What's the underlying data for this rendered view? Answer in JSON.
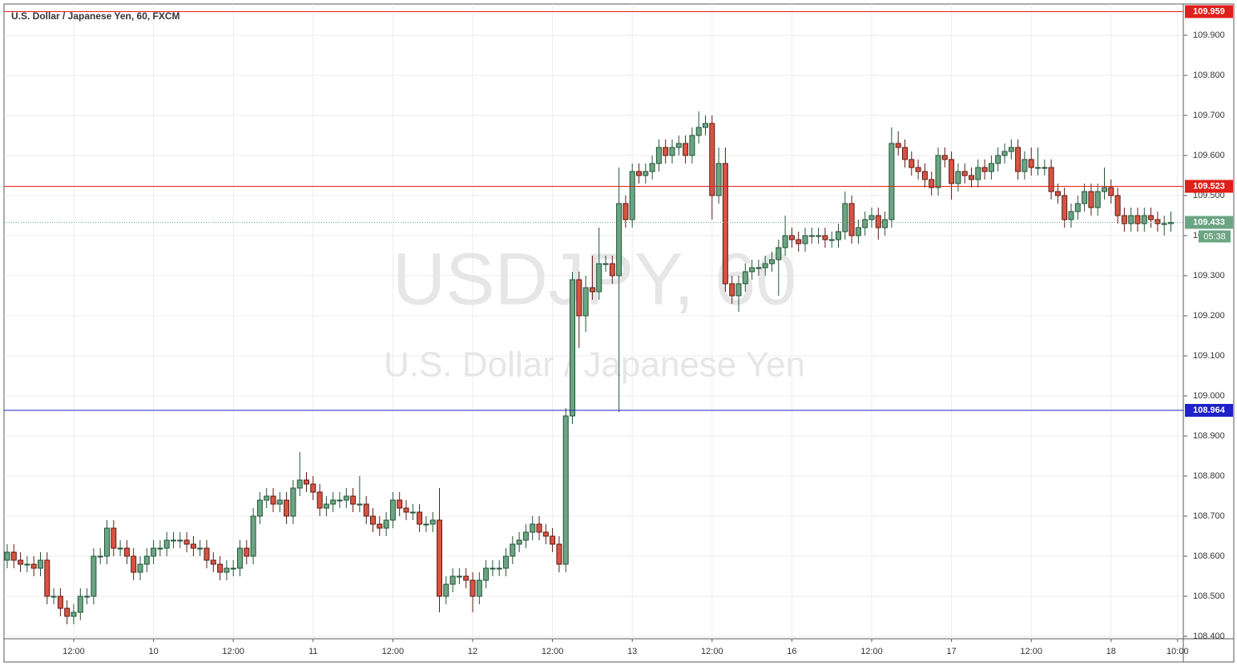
{
  "chart_data": {
    "type": "candlestick",
    "title": "U.S. Dollar / Japanese Yen, 60, FXCM",
    "watermark": "USDJPY, 60",
    "watermark_subtitle": "U.S. Dollar / Japanese Yen",
    "categories": [
      null,
      null,
      null,
      null,
      null,
      null,
      null,
      null,
      null,
      null,
      "12:00",
      null,
      null,
      null,
      null,
      null,
      null,
      null,
      null,
      null,
      null,
      null,
      "10",
      null,
      null,
      null,
      null,
      null,
      null,
      null,
      null,
      null,
      null,
      null,
      "12:00",
      null,
      null,
      null,
      null,
      null,
      null,
      null,
      null,
      null,
      null,
      null,
      "11",
      null,
      null,
      null,
      null,
      null,
      null,
      null,
      null,
      null,
      null,
      null,
      "12:00",
      null,
      null,
      null,
      null,
      null,
      null,
      null,
      null,
      null,
      null,
      null,
      "12",
      null,
      null,
      null,
      null,
      null,
      null,
      null,
      null,
      null,
      null,
      null,
      "12:00",
      null,
      null,
      null,
      null,
      null,
      null,
      null,
      null,
      null,
      null,
      null,
      "13",
      null,
      null,
      null,
      null,
      null,
      null,
      null,
      null,
      null,
      null,
      null,
      "12:00",
      null,
      null,
      null,
      null,
      null,
      null,
      null,
      null,
      null,
      null,
      null,
      "16",
      null,
      null,
      null,
      null,
      null,
      null,
      null,
      null,
      null,
      null,
      null,
      "12:00",
      null,
      null,
      null,
      null,
      null,
      null,
      null,
      null,
      null,
      null,
      null,
      "17",
      null,
      null,
      null,
      null,
      null,
      null,
      null,
      null,
      null,
      null,
      null,
      "12:00",
      null,
      null,
      null,
      null,
      null,
      null,
      null,
      null,
      null,
      null,
      null,
      "18",
      null,
      null,
      null,
      null,
      null,
      null,
      null,
      null,
      null,
      "10:00"
    ],
    "open": [
      108.59,
      108.61,
      108.59,
      108.58,
      108.58,
      108.57,
      108.59,
      108.5,
      108.5,
      108.47,
      108.45,
      108.46,
      108.5,
      108.5,
      108.6,
      108.6,
      108.67,
      108.62,
      108.62,
      108.6,
      108.56,
      108.58,
      108.6,
      108.62,
      108.62,
      108.64,
      108.64,
      108.64,
      108.63,
      108.62,
      108.62,
      108.59,
      108.58,
      108.56,
      108.57,
      108.57,
      108.62,
      108.6,
      108.7,
      108.74,
      108.75,
      108.73,
      108.74,
      108.7,
      108.77,
      108.79,
      108.78,
      108.76,
      108.72,
      108.73,
      108.74,
      108.74,
      108.75,
      108.73,
      108.73,
      108.7,
      108.68,
      108.67,
      108.69,
      108.74,
      108.72,
      108.71,
      108.71,
      108.68,
      108.68,
      108.69,
      108.5,
      108.53,
      108.55,
      108.55,
      108.54,
      108.5,
      108.54,
      108.57,
      108.57,
      108.57,
      108.6,
      108.63,
      108.64,
      108.66,
      108.68,
      108.66,
      108.65,
      108.63,
      108.58,
      108.95,
      109.29,
      109.2,
      109.27,
      109.26,
      109.33,
      109.33,
      109.3,
      109.48,
      109.44,
      109.56,
      109.55,
      109.56,
      109.58,
      109.62,
      109.6,
      109.62,
      109.63,
      109.6,
      109.65,
      109.67,
      109.68,
      109.5,
      109.58,
      109.28,
      109.25,
      109.28,
      109.31,
      109.32,
      109.32,
      109.33,
      109.34,
      109.37,
      109.4,
      109.39,
      109.38,
      109.4,
      109.4,
      109.4,
      109.39,
      109.39,
      109.41,
      109.48,
      109.4,
      109.42,
      109.44,
      109.45,
      109.42,
      109.44,
      109.63,
      109.62,
      109.59,
      109.57,
      109.56,
      109.54,
      109.52,
      109.6,
      109.59,
      109.53,
      109.56,
      109.55,
      109.54,
      109.57,
      109.56,
      109.58,
      109.6,
      109.61,
      109.62,
      109.56,
      109.59,
      109.57,
      109.57,
      109.57,
      109.51,
      109.5,
      109.44,
      109.46,
      109.48,
      109.51,
      109.47,
      109.51,
      109.52,
      109.5,
      109.45,
      109.43,
      109.45,
      109.43,
      109.45,
      109.44,
      109.43,
      109.43,
      null
    ],
    "high": [
      108.63,
      108.63,
      108.61,
      108.6,
      108.6,
      108.61,
      108.61,
      108.52,
      108.52,
      108.49,
      108.48,
      108.52,
      108.52,
      108.62,
      108.62,
      108.69,
      108.69,
      108.64,
      108.64,
      108.62,
      108.6,
      108.62,
      108.64,
      108.64,
      108.66,
      108.66,
      108.66,
      108.66,
      108.65,
      108.64,
      108.64,
      108.61,
      108.6,
      108.59,
      108.59,
      108.64,
      108.64,
      108.72,
      108.76,
      108.77,
      108.77,
      108.76,
      108.76,
      108.79,
      108.86,
      108.81,
      108.8,
      108.78,
      108.75,
      108.76,
      108.76,
      108.77,
      108.77,
      108.8,
      108.75,
      108.72,
      108.7,
      108.71,
      108.76,
      108.76,
      108.74,
      108.73,
      108.73,
      108.7,
      108.71,
      108.77,
      108.55,
      108.57,
      108.57,
      108.57,
      108.56,
      108.56,
      108.59,
      108.59,
      108.59,
      108.62,
      108.65,
      108.66,
      108.68,
      108.7,
      108.7,
      108.68,
      108.67,
      108.65,
      108.97,
      109.31,
      109.31,
      109.3,
      109.35,
      109.42,
      109.35,
      109.35,
      109.57,
      109.5,
      109.58,
      109.58,
      109.58,
      109.6,
      109.64,
      109.64,
      109.64,
      109.65,
      109.65,
      109.67,
      109.71,
      109.7,
      109.7,
      109.62,
      109.62,
      109.3,
      109.3,
      109.33,
      109.34,
      109.34,
      109.35,
      109.36,
      109.39,
      109.45,
      109.42,
      109.41,
      109.42,
      109.42,
      109.42,
      109.42,
      109.41,
      109.43,
      109.51,
      109.5,
      109.44,
      109.46,
      109.47,
      109.47,
      109.46,
      109.67,
      109.66,
      109.64,
      109.61,
      109.59,
      109.58,
      109.56,
      109.62,
      109.62,
      109.61,
      109.58,
      109.58,
      109.57,
      109.59,
      109.59,
      109.6,
      109.62,
      109.63,
      109.64,
      109.64,
      109.61,
      109.62,
      109.62,
      109.59,
      109.59,
      109.53,
      109.52,
      109.48,
      109.5,
      109.53,
      109.53,
      109.53,
      109.57,
      109.54,
      109.52,
      109.47,
      109.47,
      109.47,
      109.47,
      109.47,
      109.46,
      109.45,
      109.46,
      null
    ],
    "low": [
      108.57,
      108.57,
      108.56,
      108.56,
      108.55,
      108.55,
      108.48,
      108.48,
      108.45,
      108.43,
      108.43,
      108.44,
      108.48,
      108.48,
      108.58,
      108.58,
      108.6,
      108.6,
      108.58,
      108.54,
      108.54,
      108.56,
      108.58,
      108.6,
      108.6,
      108.62,
      108.62,
      108.61,
      108.6,
      108.6,
      108.57,
      108.56,
      108.54,
      108.54,
      108.55,
      108.55,
      108.58,
      108.58,
      108.68,
      108.72,
      108.71,
      108.71,
      108.68,
      108.68,
      108.75,
      108.76,
      108.74,
      108.7,
      108.7,
      108.71,
      108.72,
      108.72,
      108.71,
      108.71,
      108.68,
      108.66,
      108.65,
      108.65,
      108.67,
      108.7,
      108.69,
      108.69,
      108.66,
      108.66,
      108.66,
      108.46,
      108.48,
      108.51,
      108.53,
      108.52,
      108.46,
      108.48,
      108.52,
      108.55,
      108.55,
      108.55,
      108.58,
      108.61,
      108.62,
      108.64,
      108.64,
      108.63,
      108.61,
      108.56,
      108.56,
      108.93,
      109.12,
      109.16,
      109.24,
      109.24,
      109.31,
      109.28,
      108.96,
      109.42,
      109.42,
      109.53,
      109.53,
      109.54,
      109.56,
      109.58,
      109.58,
      109.6,
      109.58,
      109.58,
      109.63,
      109.65,
      109.44,
      109.48,
      109.26,
      109.23,
      109.21,
      109.26,
      109.29,
      109.3,
      109.3,
      109.31,
      109.25,
      109.35,
      109.37,
      109.36,
      109.36,
      109.38,
      109.38,
      109.37,
      109.37,
      109.37,
      109.39,
      109.38,
      109.38,
      109.4,
      109.42,
      109.39,
      109.4,
      109.42,
      109.6,
      109.57,
      109.55,
      109.54,
      109.52,
      109.5,
      109.5,
      109.57,
      109.49,
      109.51,
      109.53,
      109.52,
      109.52,
      109.54,
      109.54,
      109.56,
      109.58,
      109.59,
      109.54,
      109.54,
      109.55,
      109.55,
      109.55,
      109.49,
      109.48,
      109.42,
      109.42,
      109.44,
      109.46,
      109.45,
      109.45,
      109.49,
      109.48,
      109.43,
      109.41,
      109.41,
      109.41,
      109.41,
      109.42,
      109.41,
      109.4,
      109.41,
      null
    ],
    "close": [
      108.61,
      108.59,
      108.58,
      108.58,
      108.57,
      108.59,
      108.5,
      108.5,
      108.47,
      108.45,
      108.46,
      108.5,
      108.5,
      108.6,
      108.6,
      108.67,
      108.62,
      108.62,
      108.6,
      108.56,
      108.58,
      108.6,
      108.62,
      108.62,
      108.64,
      108.64,
      108.64,
      108.63,
      108.62,
      108.62,
      108.59,
      108.58,
      108.56,
      108.57,
      108.57,
      108.62,
      108.6,
      108.7,
      108.74,
      108.75,
      108.73,
      108.74,
      108.7,
      108.77,
      108.79,
      108.78,
      108.76,
      108.72,
      108.73,
      108.74,
      108.74,
      108.75,
      108.73,
      108.73,
      108.7,
      108.68,
      108.67,
      108.69,
      108.74,
      108.72,
      108.71,
      108.71,
      108.68,
      108.68,
      108.69,
      108.5,
      108.53,
      108.55,
      108.55,
      108.54,
      108.5,
      108.54,
      108.57,
      108.57,
      108.57,
      108.6,
      108.63,
      108.64,
      108.66,
      108.68,
      108.66,
      108.65,
      108.63,
      108.58,
      108.95,
      109.29,
      109.2,
      109.27,
      109.26,
      109.33,
      109.33,
      109.3,
      109.48,
      109.44,
      109.56,
      109.55,
      109.56,
      109.58,
      109.62,
      109.6,
      109.62,
      109.63,
      109.6,
      109.65,
      109.67,
      109.68,
      109.5,
      109.58,
      109.28,
      109.25,
      109.28,
      109.31,
      109.32,
      109.32,
      109.33,
      109.34,
      109.37,
      109.4,
      109.39,
      109.38,
      109.4,
      109.4,
      109.4,
      109.39,
      109.39,
      109.41,
      109.48,
      109.4,
      109.42,
      109.44,
      109.45,
      109.42,
      109.44,
      109.63,
      109.62,
      109.59,
      109.57,
      109.56,
      109.54,
      109.52,
      109.6,
      109.59,
      109.53,
      109.56,
      109.55,
      109.54,
      109.57,
      109.56,
      109.58,
      109.6,
      109.61,
      109.62,
      109.56,
      109.59,
      109.57,
      109.57,
      109.57,
      109.51,
      109.5,
      109.44,
      109.46,
      109.48,
      109.51,
      109.47,
      109.51,
      109.52,
      109.5,
      109.45,
      109.43,
      109.45,
      109.43,
      109.45,
      109.44,
      109.43,
      109.43,
      109.433,
      null
    ],
    "up_color": "#6ba583",
    "down_color": "#d75442",
    "ylim": [
      108.394,
      109.978
    ],
    "yticks": [
      {
        "value": 108.4,
        "label": "108.400"
      },
      {
        "value": 108.5,
        "label": "108.500"
      },
      {
        "value": 108.6,
        "label": "108.600"
      },
      {
        "value": 108.7,
        "label": "108.700"
      },
      {
        "value": 108.8,
        "label": "108.800"
      },
      {
        "value": 108.9,
        "label": "108.900"
      },
      {
        "value": 109.0,
        "label": "109.000"
      },
      {
        "value": 109.1,
        "label": "109.100"
      },
      {
        "value": 109.2,
        "label": "109.200"
      },
      {
        "value": 109.3,
        "label": "109.300"
      },
      {
        "value": 109.4,
        "label": "109.400"
      },
      {
        "value": 109.5,
        "label": "109.500"
      },
      {
        "value": 109.6,
        "label": "109.600"
      },
      {
        "value": 109.7,
        "label": "109.700"
      },
      {
        "value": 109.8,
        "label": "109.800"
      },
      {
        "value": 109.9,
        "label": "109.900"
      }
    ],
    "grid": true,
    "levels": [
      {
        "value": 109.959,
        "color": "#e0201b"
      },
      {
        "value": 109.523,
        "color": "#e0201b"
      },
      {
        "value": 108.964,
        "color": "#1e22c8"
      }
    ],
    "last_price": 109.433,
    "last_price_color": "#6ba583",
    "countdown": "05:38"
  }
}
